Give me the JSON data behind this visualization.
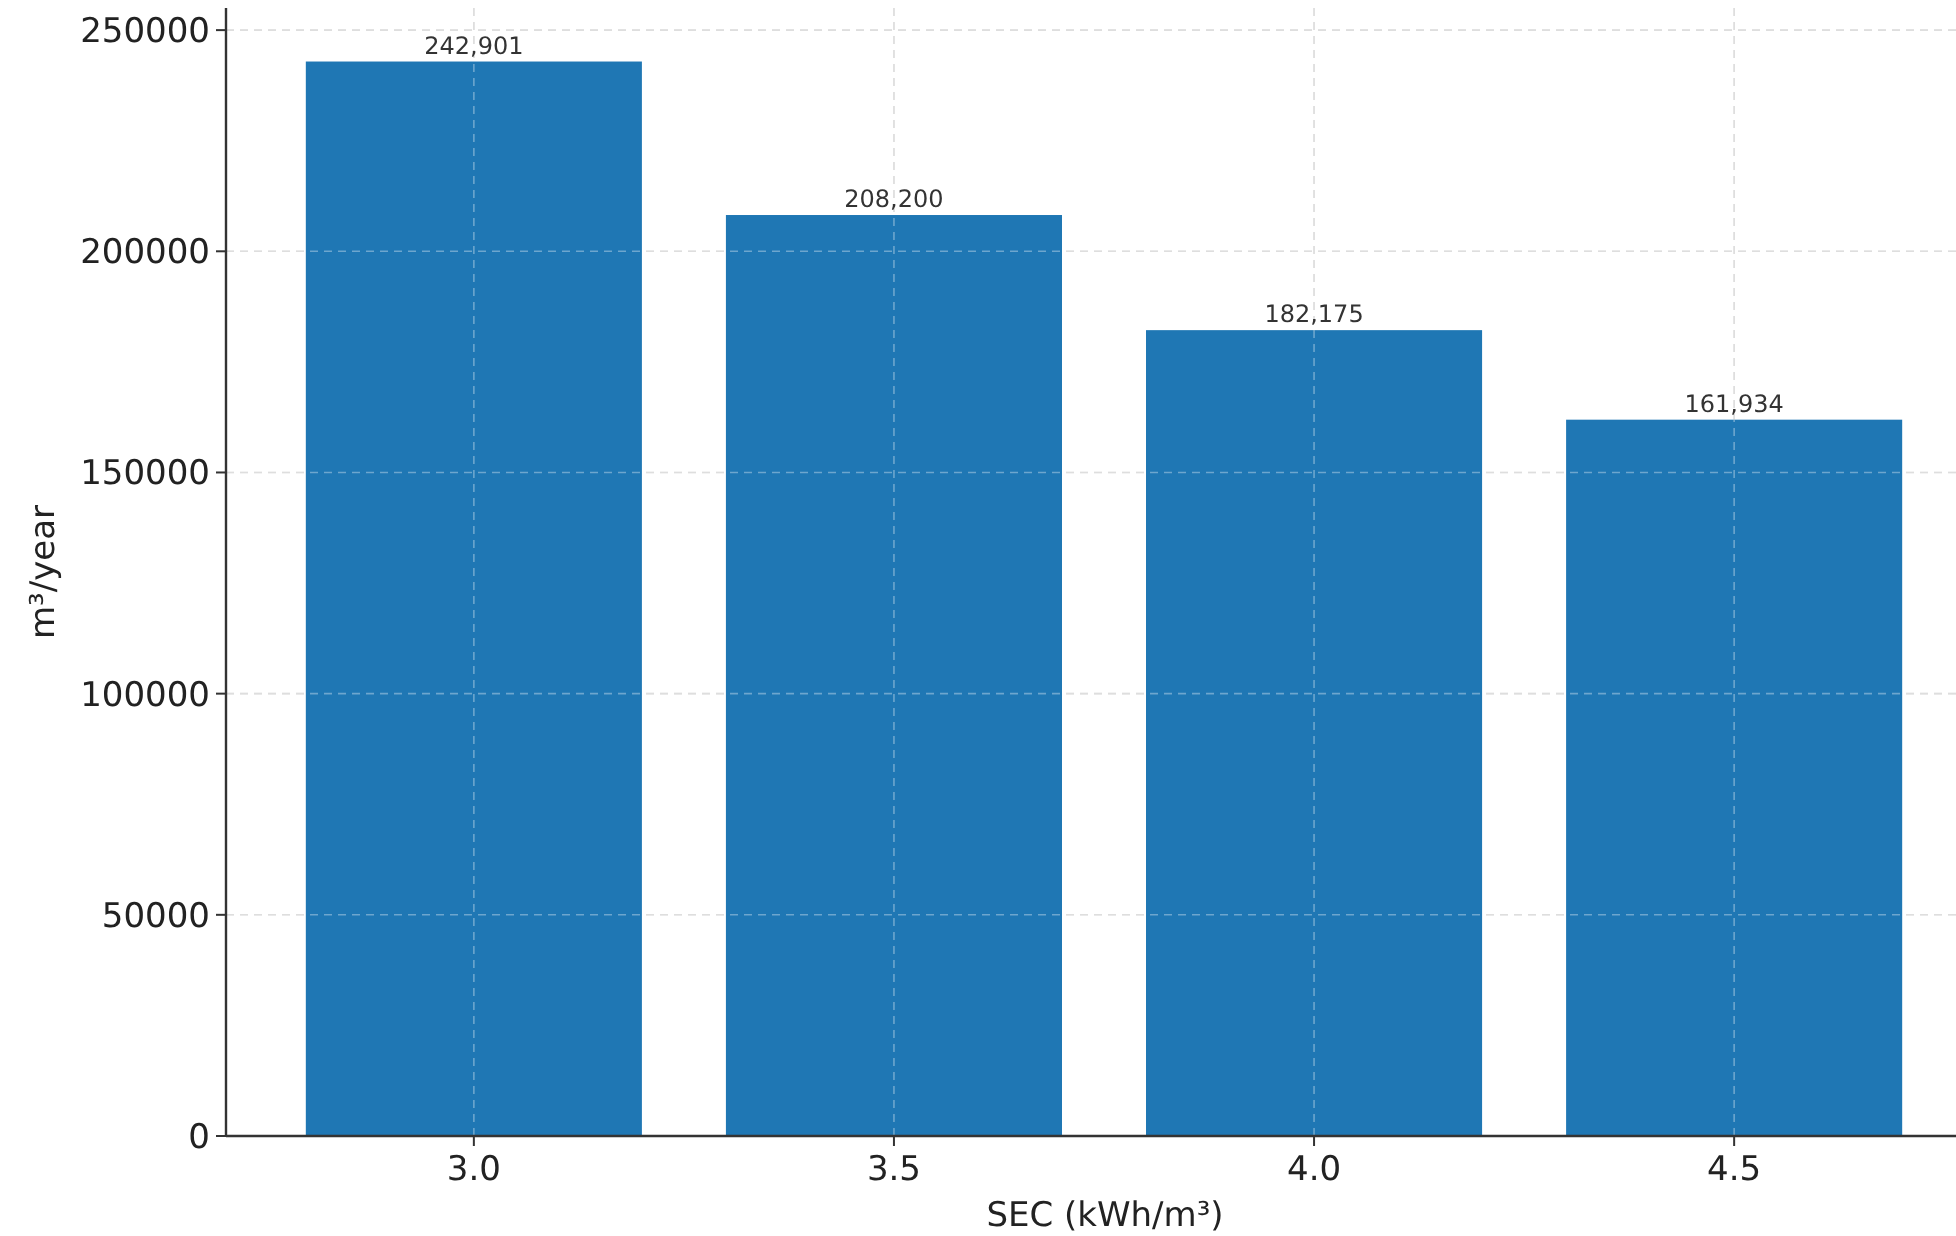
{
  "chart_data": {
    "type": "bar",
    "xlabel": "SEC (kWh/m³)",
    "ylabel": "m³/year",
    "categories": [
      "3.0",
      "3.5",
      "4.0",
      "4.5"
    ],
    "values": [
      242901,
      208200,
      182175,
      161934
    ],
    "value_labels": [
      "242,901",
      "208,200",
      "182,175",
      "161,934"
    ],
    "color": "#1f77b4",
    "ylim": [
      0,
      255000
    ],
    "yticks": [
      0,
      50000,
      100000,
      150000,
      200000,
      250000
    ],
    "grid": true
  }
}
